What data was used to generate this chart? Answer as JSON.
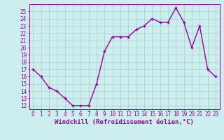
{
  "x": [
    0,
    1,
    2,
    3,
    4,
    5,
    6,
    7,
    8,
    9,
    10,
    11,
    12,
    13,
    14,
    15,
    16,
    17,
    18,
    19,
    20,
    21,
    22,
    23
  ],
  "y": [
    17,
    16,
    14.5,
    14,
    13,
    12,
    12,
    12,
    15,
    19.5,
    21.5,
    21.5,
    21.5,
    22.5,
    23,
    24,
    23.5,
    23.5,
    25.5,
    23.5,
    20,
    23,
    17,
    16
  ],
  "line_color": "#990099",
  "marker": "+",
  "bg_color": "#cceeee",
  "grid_color": "#aacccc",
  "xlabel": "Windchill (Refroidissement éolien,°C)",
  "xlabel_color": "#990099",
  "tick_color": "#990099",
  "ylim": [
    11.5,
    26.0
  ],
  "xlim": [
    -0.5,
    23.5
  ],
  "yticks": [
    12,
    13,
    14,
    15,
    16,
    17,
    18,
    19,
    20,
    21,
    22,
    23,
    24,
    25
  ],
  "xticks": [
    0,
    1,
    2,
    3,
    4,
    5,
    6,
    7,
    8,
    9,
    10,
    11,
    12,
    13,
    14,
    15,
    16,
    17,
    18,
    19,
    20,
    21,
    22,
    23
  ],
  "tick_fontsize": 5.5,
  "xlabel_fontsize": 6.5,
  "line_width": 1.0,
  "marker_size": 3.5,
  "marker_edge_width": 1.0
}
